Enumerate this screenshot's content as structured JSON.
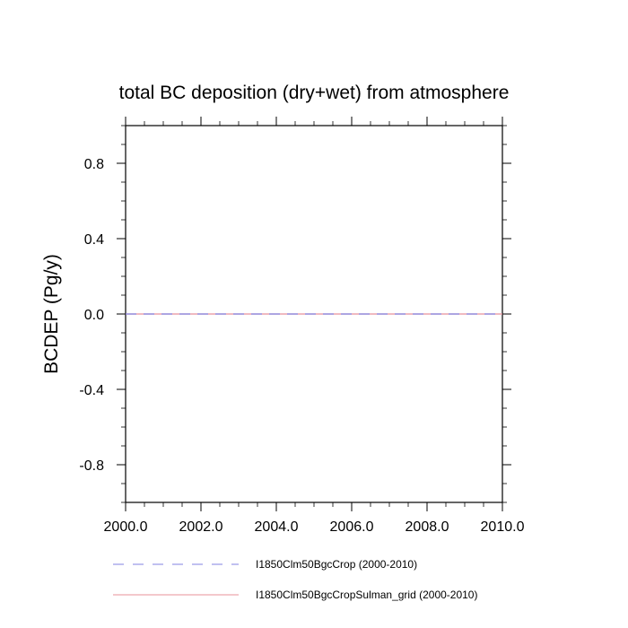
{
  "chart_data": {
    "type": "line",
    "title": "total BC deposition (dry+wet) from atmosphere",
    "xlabel": "",
    "ylabel": "BCDEP  (Pg/y)",
    "xlim": [
      2000,
      2010
    ],
    "ylim": [
      -1.0,
      1.0
    ],
    "x_ticks": [
      2000,
      2002,
      2004,
      2006,
      2008,
      2010
    ],
    "x_tick_labels": [
      "2000.0",
      "2002.0",
      "2004.0",
      "2006.0",
      "2008.0",
      "2010.0"
    ],
    "y_ticks": [
      -0.8,
      -0.4,
      0.0,
      0.4,
      0.8
    ],
    "y_tick_labels": [
      "-0.8",
      "-0.4",
      "0.0",
      "0.4",
      "0.8"
    ],
    "grid": false,
    "legend_position": "bottom",
    "x": [
      2000,
      2001,
      2002,
      2003,
      2004,
      2005,
      2006,
      2007,
      2008,
      2009,
      2010
    ],
    "series": [
      {
        "name": "I1850Clm50BgcCrop (2000-2010)",
        "color": "#8080e0",
        "dash": "dashed",
        "values": [
          0,
          0,
          0,
          0,
          0,
          0,
          0,
          0,
          0,
          0,
          0
        ]
      },
      {
        "name": "I1850Clm50BgcCropSulman_grid (2000-2010)",
        "color": "#e8909a",
        "dash": "solid",
        "values": [
          0,
          0,
          0,
          0,
          0,
          0,
          0,
          0,
          0,
          0,
          0
        ]
      }
    ]
  }
}
